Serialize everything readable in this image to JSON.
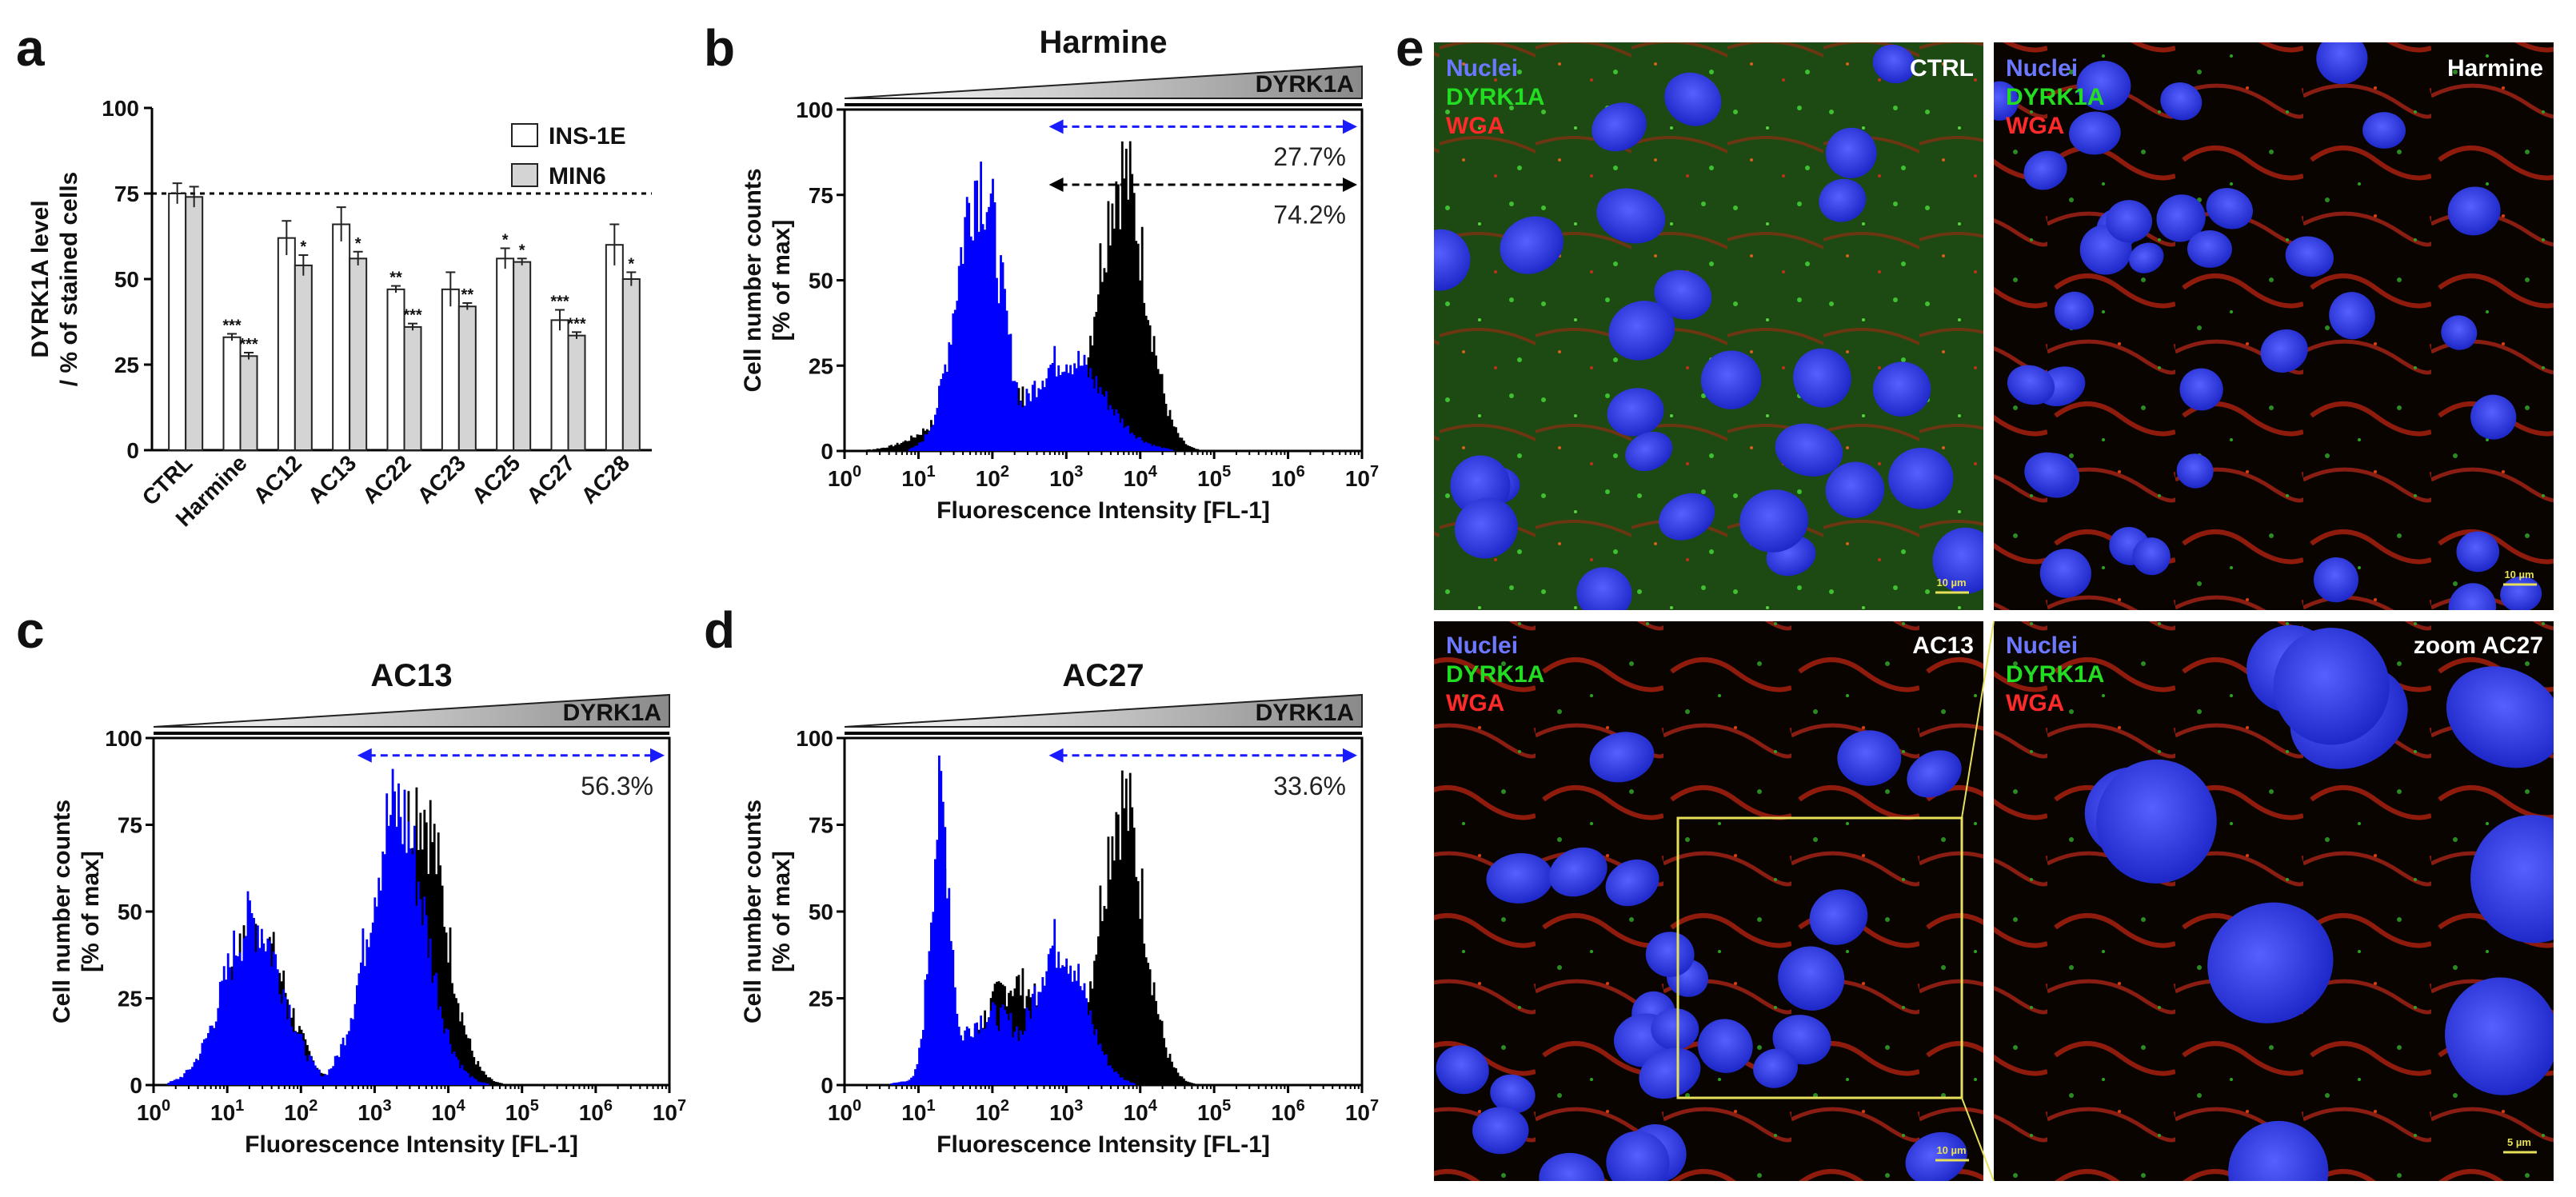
{
  "panel_letters": {
    "a": "a",
    "b": "b",
    "c": "c",
    "d": "d",
    "e": "e"
  },
  "chart_data": [
    {
      "panel": "a",
      "type": "bar",
      "title": "",
      "xlabel": "",
      "ylabel_line1": "DYRK1A level",
      "ylabel_line2": "/ % of stained cells",
      "ylim": [
        0,
        100
      ],
      "yticks": [
        "0",
        "25",
        "50",
        "75",
        "100"
      ],
      "reference_line": 75,
      "categories": [
        "CTRL",
        "Harmine",
        "AC12",
        "AC13",
        "AC22",
        "AC23",
        "AC25",
        "AC27",
        "AC28"
      ],
      "series": [
        {
          "name": "INS-1E",
          "color": "#ffffff",
          "values": [
            75,
            33,
            62,
            66,
            47,
            47,
            56,
            38,
            60
          ],
          "errors": [
            3,
            1,
            5,
            5,
            1,
            5,
            3,
            3,
            6
          ],
          "sig": [
            "",
            "***",
            "",
            "",
            "**",
            "",
            "*",
            "***",
            ""
          ]
        },
        {
          "name": "MIN6",
          "color": "#d4d4d4",
          "values": [
            74,
            27.5,
            54,
            56,
            36,
            42,
            55,
            33.5,
            50
          ],
          "errors": [
            3,
            1,
            3,
            2,
            1,
            1,
            1,
            1,
            2
          ],
          "sig": [
            "",
            "***",
            "*",
            "*",
            "***",
            "**",
            "*",
            "***",
            "*"
          ]
        }
      ]
    },
    {
      "panel": "b",
      "type": "histogram",
      "title": "Harmine",
      "gradient_label": "DYRK1A",
      "xlabel": "Fluorescence Intensity [FL-1]",
      "ylabel_line1": "Cell number counts",
      "ylabel_line2": "[% of max]",
      "ylim": [
        0,
        100
      ],
      "xrange_log10": [
        0,
        7
      ],
      "series": [
        {
          "name": "control",
          "color": "#000000",
          "peaks": [
            {
              "log": 3.75,
              "height": 90,
              "width": 0.32
            },
            {
              "log": 2.0,
              "height": 22,
              "width": 0.6
            }
          ]
        },
        {
          "name": "treated",
          "color": "#0000ff",
          "peaks": [
            {
              "log": 1.82,
              "height": 89,
              "width": 0.3
            },
            {
              "log": 3.0,
              "height": 30,
              "width": 0.5
            }
          ]
        }
      ],
      "annotations": [
        {
          "text": "27.7%",
          "color": "#1a1aff",
          "arrow_from_log": 2.7,
          "arrow_to_log": 7.0,
          "arrow_y": 95,
          "text_y": 86
        },
        {
          "text": "74.2%",
          "color": "#000000",
          "arrow_from_log": 2.7,
          "arrow_to_log": 7.0,
          "arrow_y": 78,
          "text_y": 69
        }
      ]
    },
    {
      "panel": "c",
      "type": "histogram",
      "title": "AC13",
      "gradient_label": "DYRK1A",
      "xlabel": "Fluorescence Intensity [FL-1]",
      "ylabel_line1": "Cell number counts",
      "ylabel_line2": "[% of max]",
      "ylim": [
        0,
        100
      ],
      "xrange_log10": [
        0,
        7
      ],
      "series": [
        {
          "name": "control",
          "color": "#000000",
          "peaks": [
            {
              "log": 3.6,
              "height": 90,
              "width": 0.35
            },
            {
              "log": 1.4,
              "height": 48,
              "width": 0.4
            }
          ]
        },
        {
          "name": "treated",
          "color": "#0000ff",
          "peaks": [
            {
              "log": 3.3,
              "height": 87,
              "width": 0.38
            },
            {
              "log": 1.35,
              "height": 52,
              "width": 0.4
            }
          ]
        }
      ],
      "annotations": [
        {
          "text": "56.3%",
          "color": "#1a1aff",
          "arrow_from_log": 2.7,
          "arrow_to_log": 7.0,
          "arrow_y": 95,
          "text_y": 86
        }
      ]
    },
    {
      "panel": "d",
      "type": "histogram",
      "title": "AC27",
      "gradient_label": "DYRK1A",
      "xlabel": "Fluorescence Intensity [FL-1]",
      "ylabel_line1": "Cell number counts",
      "ylabel_line2": "[% of max]",
      "ylim": [
        0,
        100
      ],
      "xrange_log10": [
        0,
        7
      ],
      "series": [
        {
          "name": "control",
          "color": "#000000",
          "peaks": [
            {
              "log": 3.75,
              "height": 90,
              "width": 0.3
            },
            {
              "log": 1.3,
              "height": 70,
              "width": 0.12
            },
            {
              "log": 2.3,
              "height": 32,
              "width": 0.45
            }
          ]
        },
        {
          "name": "treated",
          "color": "#0000ff",
          "peaks": [
            {
              "log": 1.3,
              "height": 88,
              "width": 0.14
            },
            {
              "log": 2.9,
              "height": 45,
              "width": 0.35
            },
            {
              "log": 2.0,
              "height": 22,
              "width": 0.5
            }
          ]
        }
      ],
      "annotations": [
        {
          "text": "33.6%",
          "color": "#1a1aff",
          "arrow_from_log": 2.7,
          "arrow_to_log": 7.0,
          "arrow_y": 95,
          "text_y": 86
        }
      ]
    }
  ],
  "micrographs": [
    {
      "label_nuclei": "Nuclei",
      "label_dyrk1a": "DYRK1A",
      "label_wga": "WGA",
      "condition": "CTRL",
      "scale_bar": "10 µm"
    },
    {
      "label_nuclei": "Nuclei",
      "label_dyrk1a": "DYRK1A",
      "label_wga": "WGA",
      "condition": "Harmine",
      "scale_bar": "10 µm"
    },
    {
      "label_nuclei": "Nuclei",
      "label_dyrk1a": "DYRK1A",
      "label_wga": "WGA",
      "condition": "AC13",
      "scale_bar": "10 µm"
    },
    {
      "label_nuclei": "Nuclei",
      "label_dyrk1a": "DYRK1A",
      "label_wga": "WGA",
      "condition": "zoom AC27",
      "scale_bar": "5 µm"
    }
  ],
  "colors": {
    "nuclei": "#4a5cff",
    "dyrk1a": "#22dd22",
    "wga": "#ff2a2a",
    "zoom_box": "#e6e05a"
  }
}
